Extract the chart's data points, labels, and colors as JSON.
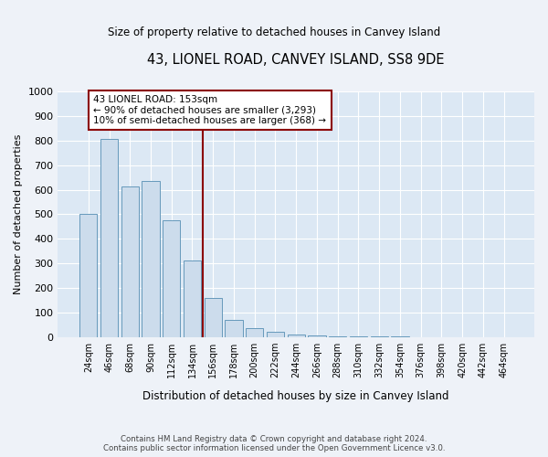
{
  "title": "43, LIONEL ROAD, CANVEY ISLAND, SS8 9DE",
  "subtitle": "Size of property relative to detached houses in Canvey Island",
  "xlabel": "Distribution of detached houses by size in Canvey Island",
  "ylabel": "Number of detached properties",
  "bar_color": "#ccdcec",
  "bar_edge_color": "#6699bb",
  "bins": [
    "24sqm",
    "46sqm",
    "68sqm",
    "90sqm",
    "112sqm",
    "134sqm",
    "156sqm",
    "178sqm",
    "200sqm",
    "222sqm",
    "244sqm",
    "266sqm",
    "288sqm",
    "310sqm",
    "332sqm",
    "354sqm",
    "376sqm",
    "398sqm",
    "420sqm",
    "442sqm",
    "464sqm"
  ],
  "values": [
    500,
    805,
    615,
    635,
    475,
    310,
    160,
    70,
    35,
    20,
    10,
    5,
    3,
    2,
    1,
    1,
    0,
    0,
    0,
    0,
    0
  ],
  "property_label": "43 LIONEL ROAD: 153sqm",
  "annotation_line1": "← 90% of detached houses are smaller (3,293)",
  "annotation_line2": "10% of semi-detached houses are larger (368) →",
  "vline_bin_index": 6,
  "ylim_max": 1000,
  "yticks": [
    0,
    100,
    200,
    300,
    400,
    500,
    600,
    700,
    800,
    900,
    1000
  ],
  "footer_line1": "Contains HM Land Registry data © Crown copyright and database right 2024.",
  "footer_line2": "Contains public sector information licensed under the Open Government Licence v3.0.",
  "fig_bg": "#eef2f8",
  "axes_bg": "#dce8f4"
}
